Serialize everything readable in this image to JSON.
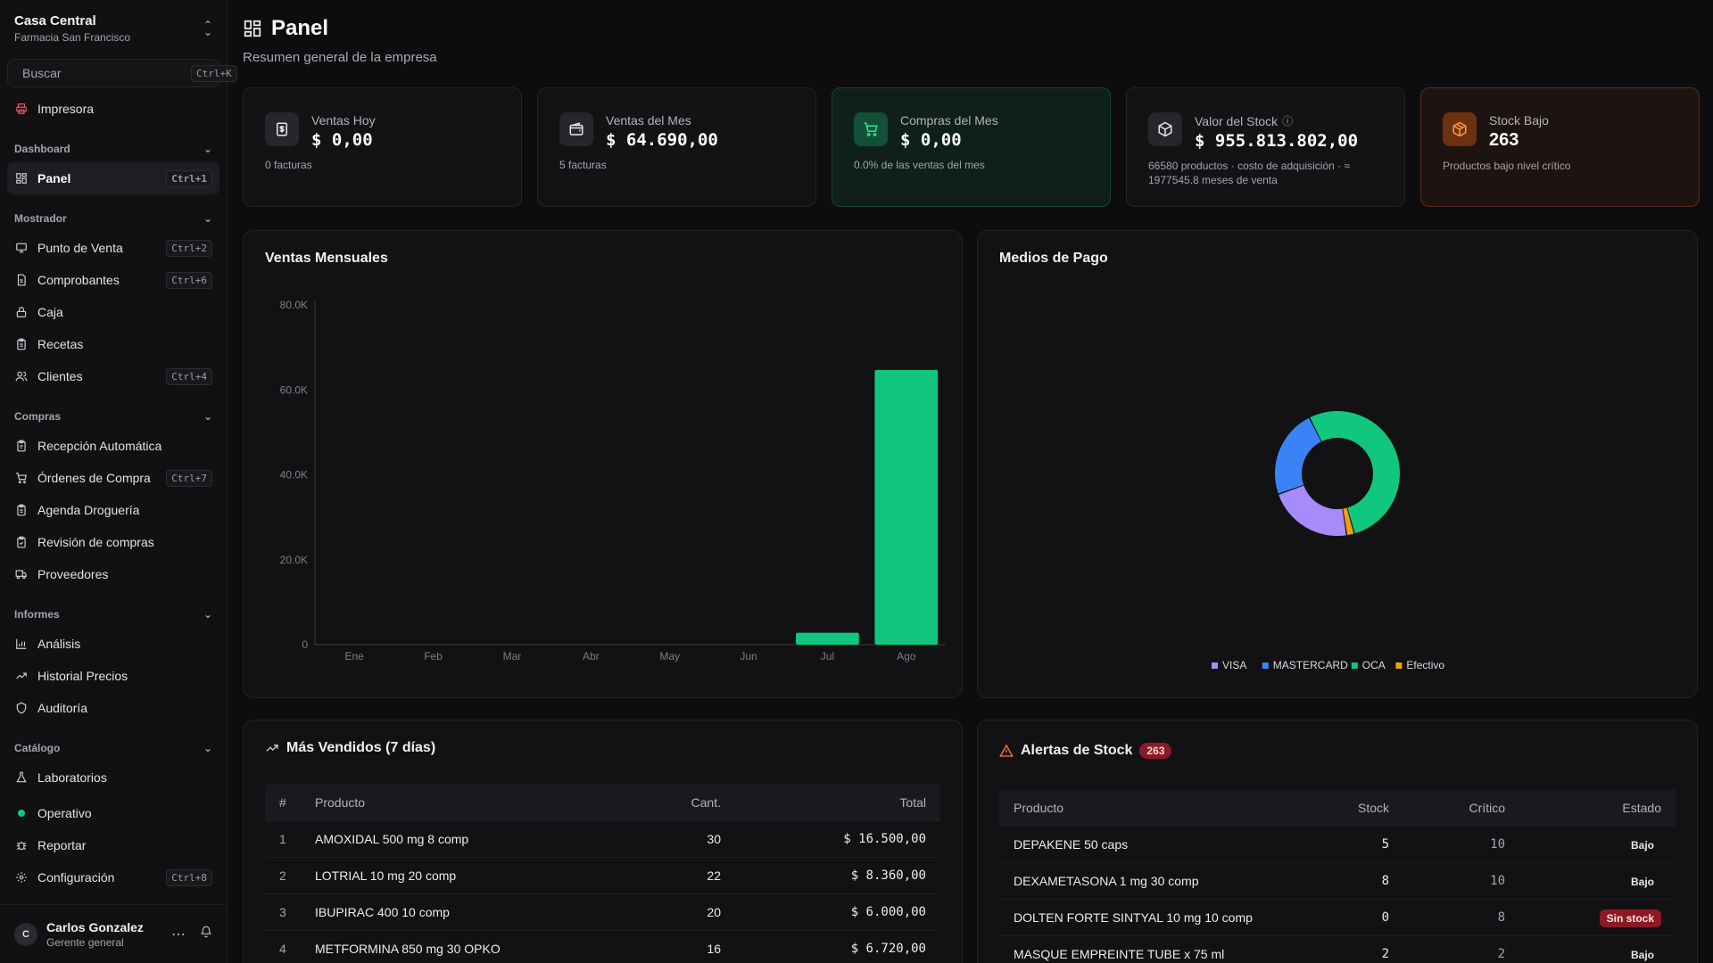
{
  "sidebar": {
    "org": "Casa Central",
    "branch": "Farmacia San Francisco",
    "search": {
      "placeholder": "Buscar",
      "shortcut": "Ctrl+K"
    },
    "printer": "Impresora",
    "sections": {
      "dashboard": {
        "title": "Dashboard",
        "items": [
          {
            "label": "Panel",
            "shortcut": "Ctrl+1"
          }
        ]
      },
      "mostrador": {
        "title": "Mostrador",
        "items": [
          {
            "label": "Punto de Venta",
            "shortcut": "Ctrl+2"
          },
          {
            "label": "Comprobantes",
            "shortcut": "Ctrl+6"
          },
          {
            "label": "Caja",
            "shortcut": ""
          },
          {
            "label": "Recetas",
            "shortcut": ""
          },
          {
            "label": "Clientes",
            "shortcut": "Ctrl+4"
          }
        ]
      },
      "compras": {
        "title": "Compras",
        "items": [
          {
            "label": "Recepción Automática",
            "shortcut": ""
          },
          {
            "label": "Órdenes de Compra",
            "shortcut": "Ctrl+7"
          },
          {
            "label": "Agenda Droguería",
            "shortcut": ""
          },
          {
            "label": "Revisión de compras",
            "shortcut": ""
          },
          {
            "label": "Proveedores",
            "shortcut": ""
          }
        ]
      },
      "informes": {
        "title": "Informes",
        "items": [
          {
            "label": "Análisis",
            "shortcut": ""
          },
          {
            "label": "Historial Precios",
            "shortcut": ""
          },
          {
            "label": "Auditoría",
            "shortcut": ""
          }
        ]
      },
      "catalogo": {
        "title": "Catálogo",
        "items": [
          {
            "label": "Laboratorios",
            "shortcut": ""
          }
        ]
      }
    },
    "status": "Operativo",
    "report": "Reportar",
    "settings": {
      "label": "Configuración",
      "shortcut": "Ctrl+8"
    },
    "user": {
      "initial": "C",
      "name": "Carlos Gonzalez",
      "role": "Gerente general"
    }
  },
  "header": {
    "title": "Panel",
    "subtitle": "Resumen general de la empresa"
  },
  "kpis": [
    {
      "label": "Ventas Hoy",
      "value": "$ 0,00",
      "foot": "0 facturas"
    },
    {
      "label": "Ventas del Mes",
      "value": "$ 64.690,00",
      "foot": "5 facturas"
    },
    {
      "label": "Compras del Mes",
      "value": "$ 0,00",
      "foot": "0.0% de las ventas del mes"
    },
    {
      "label": "Valor del Stock",
      "value": "$ 955.813.802,00",
      "foot": "66580 productos · costo de adquisición · ≈ 1977545.8 meses de venta"
    },
    {
      "label": "Stock Bajo",
      "value": "263",
      "foot": "Productos bajo nivel crítico"
    }
  ],
  "colors": {
    "accent": "#10c77d",
    "visa": "#a78bfa",
    "mastercard": "#3b82f6",
    "oca": "#10c77d",
    "efectivo": "#f59e0b"
  },
  "sales_chart": {
    "title": "Ventas Mensuales",
    "chart_data": {
      "type": "bar",
      "categories": [
        "Ene",
        "Feb",
        "Mar",
        "Abr",
        "May",
        "Jun",
        "Jul",
        "Ago"
      ],
      "values": [
        0,
        0,
        0,
        0,
        0,
        0,
        2800,
        64690
      ],
      "yticks": [
        "0",
        "20.0K",
        "40.0K",
        "60.0K",
        "80.0K"
      ],
      "ylim": [
        0,
        80000
      ]
    }
  },
  "payment_chart": {
    "title": "Medios de Pago",
    "chart_data": {
      "type": "pie",
      "labels": [
        "VISA",
        "MASTERCARD",
        "OCA",
        "Efectivo"
      ],
      "values": [
        22,
        23,
        53,
        2
      ]
    }
  },
  "top_sold": {
    "title": "Más Vendidos (7 días)",
    "columns": [
      "#",
      "Producto",
      "Cant.",
      "Total"
    ],
    "rows": [
      [
        "1",
        "AMOXIDAL 500 mg 8 comp",
        "30",
        "$ 16.500,00"
      ],
      [
        "2",
        "LOTRIAL 10 mg 20 comp",
        "22",
        "$ 8.360,00"
      ],
      [
        "3",
        "IBUPIRAC 400 10 comp",
        "20",
        "$ 6.000,00"
      ],
      [
        "4",
        "METFORMINA 850 mg 30 OPKO",
        "16",
        "$ 6.720,00"
      ]
    ]
  },
  "stock_alerts": {
    "title": "Alertas de Stock",
    "count": "263",
    "columns": [
      "Producto",
      "Stock",
      "Crítico",
      "Estado"
    ],
    "rows": [
      [
        "DEPAKENE 50 caps",
        "5",
        "10",
        "Bajo"
      ],
      [
        "DEXAMETASONA 1 mg 30 comp",
        "8",
        "10",
        "Bajo"
      ],
      [
        "DOLTEN FORTE SINTYAL 10 mg 10 comp",
        "0",
        "8",
        "Sin stock"
      ],
      [
        "MASQUE EMPREINTE TUBE x 75 ml",
        "2",
        "2",
        "Bajo"
      ]
    ]
  }
}
